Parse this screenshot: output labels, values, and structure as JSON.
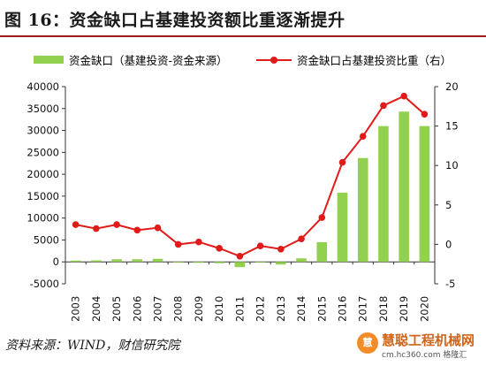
{
  "header": {
    "title": "图 16：资金缺口占基建投资额比重逐渐提升"
  },
  "source": "资料来源：WIND，财信研究院",
  "watermark": {
    "logo": "慧",
    "name": "慧聪工程机械网",
    "url": "cm.hc360.com 格隆汇"
  },
  "colors": {
    "bar": "#92d050",
    "line": "#e11a1a",
    "title_rule": "#9b1c1c"
  },
  "chart_data": {
    "type": "bar",
    "categories": [
      "2003",
      "2004",
      "2005",
      "2006",
      "2007",
      "2008",
      "2009",
      "2010",
      "2011",
      "2012",
      "2013",
      "2014",
      "2015",
      "2016",
      "2017",
      "2018",
      "2019",
      "2020"
    ],
    "series": [
      {
        "name": "资金缺口（基建投资-资金来源）",
        "type": "bar",
        "axis": "left",
        "values": [
          300,
          350,
          600,
          600,
          700,
          -100,
          -200,
          -300,
          -1200,
          -150,
          -600,
          800,
          4500,
          15800,
          23700,
          31000,
          34300,
          31000
        ]
      },
      {
        "name": "资金缺口占基建投资比重（右）",
        "type": "line",
        "axis": "right",
        "values": [
          2.5,
          2.0,
          2.5,
          1.8,
          2.1,
          0.0,
          0.3,
          -0.5,
          -1.5,
          -0.2,
          -0.6,
          0.7,
          3.4,
          10.4,
          13.7,
          17.6,
          18.8,
          16.5
        ]
      }
    ],
    "y_left": {
      "ylim": [
        -5000,
        40000
      ],
      "ticks": [
        -5000,
        0,
        5000,
        10000,
        15000,
        20000,
        25000,
        30000,
        35000,
        40000
      ],
      "tick_labels": [
        "-5000",
        "0",
        "5000",
        "10000",
        "15000",
        "20000",
        "25000",
        "30000",
        "35000",
        "40000"
      ]
    },
    "y_right": {
      "ylim": [
        -5,
        20
      ],
      "ticks": [
        -5,
        0,
        5,
        10,
        15,
        20
      ],
      "tick_labels": [
        "-5",
        "0",
        "5",
        "10",
        "15",
        "20"
      ]
    },
    "grid": false,
    "legend_position": "top"
  }
}
